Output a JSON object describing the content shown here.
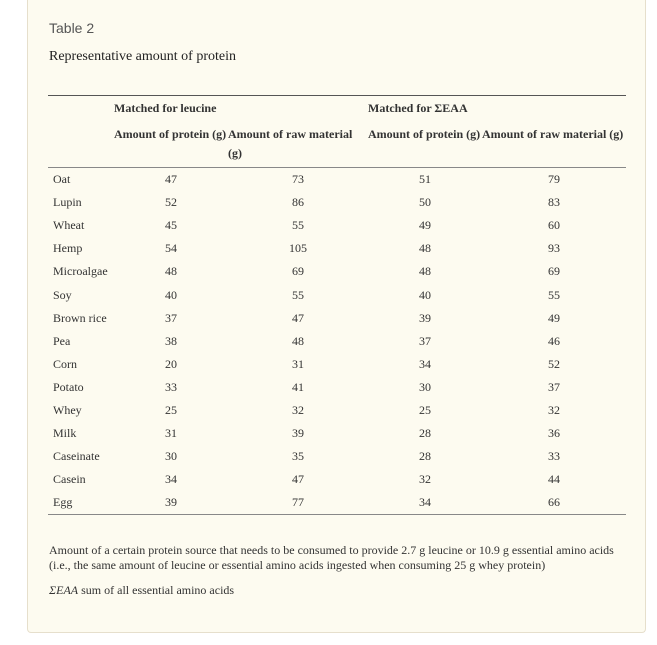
{
  "table": {
    "label": "Table 2",
    "title": "Representative amount of protein",
    "group_headers": {
      "leucine": "Matched for leucine",
      "eaa": "Matched for ΣEAA"
    },
    "column_headers": {
      "leucine_protein": "Amount of protein (g)",
      "leucine_raw": "Amount of raw material (g)",
      "eaa_protein": "Amount of protein (g)",
      "eaa_raw": "Amount of raw material (g)"
    },
    "rows": [
      {
        "name": "Oat",
        "leucine_protein": "47",
        "leucine_raw": "73",
        "eaa_protein": "51",
        "eaa_raw": "79"
      },
      {
        "name": "Lupin",
        "leucine_protein": "52",
        "leucine_raw": "86",
        "eaa_protein": "50",
        "eaa_raw": "83"
      },
      {
        "name": "Wheat",
        "leucine_protein": "45",
        "leucine_raw": "55",
        "eaa_protein": "49",
        "eaa_raw": "60"
      },
      {
        "name": "Hemp",
        "leucine_protein": "54",
        "leucine_raw": "105",
        "eaa_protein": "48",
        "eaa_raw": "93"
      },
      {
        "name": "Microalgae",
        "leucine_protein": "48",
        "leucine_raw": "69",
        "eaa_protein": "48",
        "eaa_raw": "69"
      },
      {
        "name": "Soy",
        "leucine_protein": "40",
        "leucine_raw": "55",
        "eaa_protein": "40",
        "eaa_raw": "55"
      },
      {
        "name": "Brown rice",
        "leucine_protein": "37",
        "leucine_raw": "47",
        "eaa_protein": "39",
        "eaa_raw": "49"
      },
      {
        "name": "Pea",
        "leucine_protein": "38",
        "leucine_raw": "48",
        "eaa_protein": "37",
        "eaa_raw": "46"
      },
      {
        "name": "Corn",
        "leucine_protein": "20",
        "leucine_raw": "31",
        "eaa_protein": "34",
        "eaa_raw": "52"
      },
      {
        "name": "Potato",
        "leucine_protein": "33",
        "leucine_raw": "41",
        "eaa_protein": "30",
        "eaa_raw": "37"
      },
      {
        "name": "Whey",
        "leucine_protein": "25",
        "leucine_raw": "32",
        "eaa_protein": "25",
        "eaa_raw": "32"
      },
      {
        "name": "Milk",
        "leucine_protein": "31",
        "leucine_raw": "39",
        "eaa_protein": "28",
        "eaa_raw": "36"
      },
      {
        "name": "Caseinate",
        "leucine_protein": "30",
        "leucine_raw": "35",
        "eaa_protein": "28",
        "eaa_raw": "33"
      },
      {
        "name": "Casein",
        "leucine_protein": "34",
        "leucine_raw": "47",
        "eaa_protein": "32",
        "eaa_raw": "44"
      },
      {
        "name": "Egg",
        "leucine_protein": "39",
        "leucine_raw": "77",
        "eaa_protein": "34",
        "eaa_raw": "66"
      }
    ]
  },
  "footnotes": {
    "main": "Amount of a certain protein source that needs to be consumed to provide 2.7 g leucine or 10.9 g essential amino acids (i.e., the same amount of leucine or essential amino acids ingested when consuming 25 g whey protein)",
    "abbr_term": "ΣEAA",
    "abbr_definition": "sum of all essential amino acids"
  }
}
